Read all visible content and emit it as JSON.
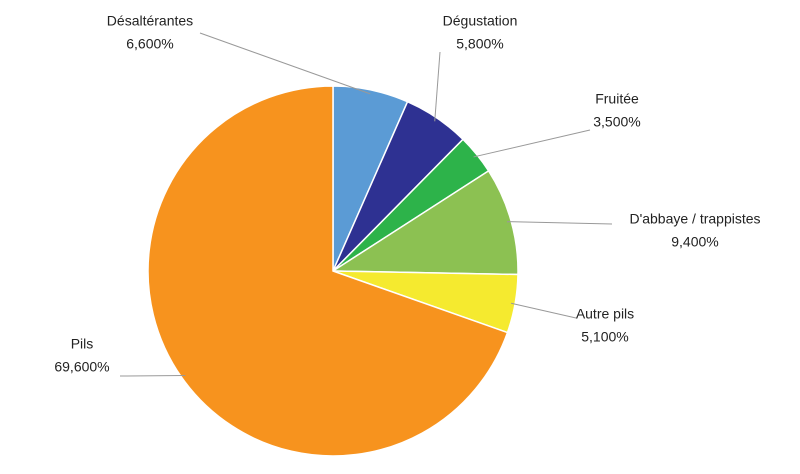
{
  "chart_data": {
    "type": "pie",
    "categories": [
      "Désaltérantes",
      "Dégustation",
      "Fruitée",
      "D'abbaye / trappistes",
      "Autre pils",
      "Pils"
    ],
    "values": [
      6.6,
      5.8,
      3.5,
      9.4,
      5.1,
      69.6
    ],
    "value_labels": [
      "6,600%",
      "5,800%",
      "3,500%",
      "9,400%",
      "5,100%",
      "69,600%"
    ],
    "colors": [
      "#5b9bd5",
      "#2e3192",
      "#2db34a",
      "#8cc152",
      "#f5ea2f",
      "#f7931e"
    ]
  }
}
